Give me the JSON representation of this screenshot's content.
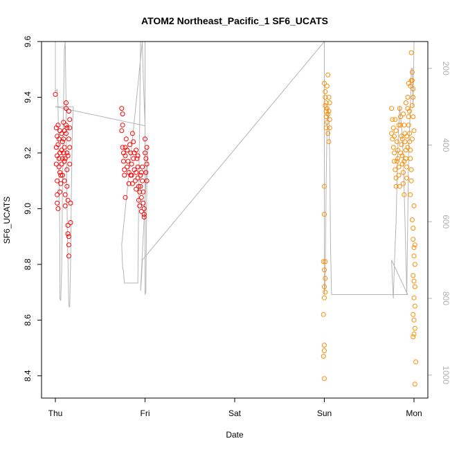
{
  "chart_data": {
    "type": "scatter",
    "title": "ATOM2 Northeast_Pacific_1 SF6_UCATS",
    "xlabel": "Date",
    "ylabel": "SF6_UCATS",
    "x_ticks": [
      "Thu",
      "Fri",
      "Sat",
      "Sun",
      "Mon"
    ],
    "x_range": [
      0,
      4
    ],
    "ylim": [
      8.32,
      9.6
    ],
    "y_ticks": [
      8.4,
      8.6,
      8.8,
      9.0,
      9.2,
      9.4,
      9.6
    ],
    "y_tick_labels": [
      "8.4",
      "8.6",
      "8.8",
      "9.0",
      "9.2",
      "9.4",
      "9.6"
    ],
    "y2_ticks": [
      200,
      400,
      600,
      800,
      1000
    ],
    "y2_tick_labels": [
      "200",
      "400",
      "600",
      "800",
      "1000"
    ],
    "y2_range": [
      130,
      1060
    ],
    "grid": false,
    "colors": {
      "early": "#ff0000",
      "late": "#ff8c00",
      "pressure": "#b4b4b4"
    },
    "series": [
      {
        "color": "#ff0000",
        "points": [
          [
            0.0,
            9.41
          ],
          [
            0.01,
            9.29
          ],
          [
            0.02,
            9.26
          ],
          [
            0.01,
            9.22
          ],
          [
            0.02,
            9.19
          ],
          [
            0.01,
            9.16
          ],
          [
            0.02,
            9.1
          ],
          [
            0.02,
            9.05
          ],
          [
            0.03,
            9.0
          ],
          [
            0.02,
            9.02
          ],
          [
            0.03,
            9.3
          ],
          [
            0.04,
            9.25
          ],
          [
            0.05,
            9.2
          ],
          [
            0.04,
            9.15
          ],
          [
            0.05,
            9.13
          ],
          [
            0.06,
            9.09
          ],
          [
            0.05,
            9.06
          ],
          [
            0.07,
            9.27
          ],
          [
            0.07,
            9.21
          ],
          [
            0.08,
            9.18
          ],
          [
            0.08,
            9.12
          ],
          [
            0.09,
            9.31
          ],
          [
            0.09,
            9.25
          ],
          [
            0.1,
            9.22
          ],
          [
            0.1,
            9.17
          ],
          [
            0.1,
            9.1
          ],
          [
            0.11,
            9.05
          ],
          [
            0.11,
            9.01
          ],
          [
            0.12,
            9.38
          ],
          [
            0.12,
            9.3
          ],
          [
            0.12,
            9.27
          ],
          [
            0.13,
            9.2
          ],
          [
            0.13,
            9.14
          ],
          [
            0.13,
            9.08
          ],
          [
            0.14,
            9.03
          ],
          [
            0.14,
            8.94
          ],
          [
            0.14,
            8.91
          ],
          [
            0.15,
            8.87
          ],
          [
            0.15,
            8.83
          ],
          [
            0.15,
            9.35
          ],
          [
            0.16,
            9.29
          ],
          [
            0.16,
            9.22
          ],
          [
            0.16,
            9.16
          ],
          [
            0.17,
            9.02
          ],
          [
            0.17,
            8.95
          ],
          [
            0.07,
            9.16
          ],
          [
            0.06,
            9.12
          ],
          [
            0.09,
            9.2
          ],
          [
            0.11,
            9.18
          ],
          [
            0.13,
            9.29
          ],
          [
            0.15,
            9.25
          ],
          [
            0.16,
            9.32
          ],
          [
            0.12,
            9.36
          ],
          [
            0.14,
            9.19
          ],
          [
            0.1,
            9.28
          ],
          [
            0.08,
            9.24
          ],
          [
            0.04,
            9.18
          ],
          [
            0.03,
            9.23
          ],
          [
            0.05,
            9.28
          ],
          [
            0.15,
            8.9
          ],
          [
            0.74,
            9.36
          ],
          [
            0.75,
            9.34
          ],
          [
            0.75,
            9.3
          ],
          [
            0.74,
            9.28
          ],
          [
            0.75,
            9.22
          ],
          [
            0.76,
            9.2
          ],
          [
            0.76,
            9.17
          ],
          [
            0.77,
            9.14
          ],
          [
            0.77,
            9.12
          ],
          [
            0.78,
            9.04
          ],
          [
            0.78,
            9.19
          ],
          [
            0.79,
            9.25
          ],
          [
            0.8,
            9.21
          ],
          [
            0.81,
            9.17
          ],
          [
            0.82,
            9.13
          ],
          [
            0.82,
            9.09
          ],
          [
            0.83,
            9.23
          ],
          [
            0.84,
            9.2
          ],
          [
            0.85,
            9.16
          ],
          [
            0.85,
            9.12
          ],
          [
            0.86,
            9.27
          ],
          [
            0.87,
            9.24
          ],
          [
            0.87,
            9.18
          ],
          [
            0.88,
            9.14
          ],
          [
            0.89,
            9.1
          ],
          [
            0.9,
            9.07
          ],
          [
            0.9,
            9.21
          ],
          [
            0.91,
            9.18
          ],
          [
            0.92,
            9.15
          ],
          [
            0.92,
            9.11
          ],
          [
            0.93,
            9.08
          ],
          [
            0.93,
            9.03
          ],
          [
            0.94,
            9.01
          ],
          [
            0.95,
            9.12
          ],
          [
            0.95,
            9.08
          ],
          [
            0.96,
            9.04
          ],
          [
            0.96,
            8.99
          ],
          [
            0.97,
            9.15
          ],
          [
            0.97,
            9.1
          ],
          [
            0.98,
            9.06
          ],
          [
            0.98,
            9.02
          ],
          [
            0.99,
            8.98
          ],
          [
            0.99,
            8.97
          ],
          [
            1.0,
            9.25
          ],
          [
            1.0,
            9.2
          ],
          [
            1.01,
            9.18
          ],
          [
            1.01,
            9.13
          ],
          [
            1.02,
            9.22
          ],
          [
            1.02,
            9.16
          ],
          [
            1.02,
            9.1
          ],
          [
            0.8,
            9.15
          ],
          [
            0.84,
            9.12
          ],
          [
            0.88,
            9.2
          ],
          [
            0.92,
            9.19
          ],
          [
            0.96,
            9.13
          ],
          [
            0.78,
            9.22
          ],
          [
            0.86,
            9.09
          ],
          [
            0.94,
            9.06
          ],
          [
            0.9,
            9.13
          ],
          [
            0.99,
            9.0
          ]
        ]
      },
      {
        "color": "#ff8c00",
        "points": [
          [
            3.0,
            9.45
          ],
          [
            3.01,
            9.42
          ],
          [
            3.01,
            9.4
          ],
          [
            3.02,
            9.38
          ],
          [
            3.01,
            9.37
          ],
          [
            3.02,
            9.35
          ],
          [
            3.02,
            9.33
          ],
          [
            3.03,
            9.31
          ],
          [
            3.03,
            9.36
          ],
          [
            3.04,
            9.34
          ],
          [
            3.04,
            9.48
          ],
          [
            3.03,
            9.44
          ],
          [
            3.02,
            9.29
          ],
          [
            3.04,
            9.27
          ],
          [
            3.05,
            9.24
          ],
          [
            3.05,
            9.35
          ],
          [
            3.06,
            9.38
          ],
          [
            3.06,
            9.32
          ],
          [
            3.0,
            9.08
          ],
          [
            3.0,
            8.98
          ],
          [
            2.99,
            8.81
          ],
          [
            3.0,
            8.78
          ],
          [
            3.01,
            8.75
          ],
          [
            3.0,
            8.72
          ],
          [
            3.0,
            8.68
          ],
          [
            3.01,
            8.7
          ],
          [
            2.99,
            8.62
          ],
          [
            3.0,
            8.51
          ],
          [
            3.0,
            8.49
          ],
          [
            2.99,
            8.47
          ],
          [
            3.0,
            8.39
          ],
          [
            3.01,
            8.81
          ],
          [
            3.05,
            9.4
          ],
          [
            3.06,
            9.29
          ],
          [
            3.75,
            9.36
          ],
          [
            3.76,
            9.32
          ],
          [
            3.77,
            9.29
          ],
          [
            3.75,
            9.27
          ],
          [
            3.76,
            9.25
          ],
          [
            3.77,
            9.22
          ],
          [
            3.78,
            9.2
          ],
          [
            3.78,
            9.17
          ],
          [
            3.79,
            9.14
          ],
          [
            3.8,
            9.11
          ],
          [
            3.8,
            9.28
          ],
          [
            3.81,
            9.24
          ],
          [
            3.82,
            9.21
          ],
          [
            3.82,
            9.18
          ],
          [
            3.83,
            9.15
          ],
          [
            3.83,
            9.12
          ],
          [
            3.84,
            9.08
          ],
          [
            3.85,
            9.33
          ],
          [
            3.85,
            9.3
          ],
          [
            3.86,
            9.26
          ],
          [
            3.86,
            9.23
          ],
          [
            3.87,
            9.19
          ],
          [
            3.87,
            9.16
          ],
          [
            3.88,
            9.13
          ],
          [
            3.88,
            9.09
          ],
          [
            3.89,
            9.05
          ],
          [
            3.89,
            9.3
          ],
          [
            3.9,
            9.27
          ],
          [
            3.9,
            9.24
          ],
          [
            3.91,
            9.21
          ],
          [
            3.91,
            9.18
          ],
          [
            3.92,
            9.15
          ],
          [
            3.92,
            9.11
          ],
          [
            3.93,
            9.4
          ],
          [
            3.93,
            9.36
          ],
          [
            3.94,
            9.33
          ],
          [
            3.94,
            9.3
          ],
          [
            3.95,
            9.27
          ],
          [
            3.95,
            9.24
          ],
          [
            3.96,
            9.21
          ],
          [
            3.96,
            9.18
          ],
          [
            3.97,
            9.14
          ],
          [
            3.97,
            9.56
          ],
          [
            3.98,
            9.49
          ],
          [
            3.98,
            9.46
          ],
          [
            3.99,
            9.43
          ],
          [
            3.99,
            9.4
          ],
          [
            3.98,
            9.37
          ],
          [
            3.99,
            9.33
          ],
          [
            4.0,
            9.28
          ],
          [
            3.98,
            8.96
          ],
          [
            3.99,
            8.93
          ],
          [
            3.99,
            8.89
          ],
          [
            4.0,
            8.86
          ],
          [
            4.0,
            8.83
          ],
          [
            4.01,
            8.87
          ],
          [
            4.01,
            8.8
          ],
          [
            3.99,
            8.76
          ],
          [
            4.0,
            8.74
          ],
          [
            4.01,
            8.72
          ],
          [
            4.0,
            8.68
          ],
          [
            4.01,
            8.65
          ],
          [
            3.99,
            8.62
          ],
          [
            4.0,
            8.6
          ],
          [
            4.01,
            8.57
          ],
          [
            4.0,
            8.55
          ],
          [
            3.99,
            8.54
          ],
          [
            4.0,
            9.01
          ],
          [
            4.02,
            8.45
          ],
          [
            4.01,
            8.37
          ],
          [
            3.96,
            9.05
          ],
          [
            3.97,
            9.1
          ],
          [
            3.93,
            9.22
          ],
          [
            3.87,
            9.25
          ],
          [
            3.83,
            9.3
          ],
          [
            3.79,
            9.32
          ],
          [
            3.81,
            9.17
          ],
          [
            3.85,
            9.2
          ],
          [
            3.89,
            9.17
          ],
          [
            3.92,
            9.26
          ],
          [
            3.94,
            9.45
          ],
          [
            3.96,
            9.44
          ],
          [
            3.97,
            9.46
          ],
          [
            3.78,
            9.26
          ],
          [
            3.8,
            9.08
          ],
          [
            3.84,
            9.36
          ],
          [
            3.88,
            9.34
          ],
          [
            3.91,
            9.38
          ],
          [
            3.95,
            9.35
          ],
          [
            3.98,
            9.25
          ]
        ]
      }
    ],
    "pressure_trace": [
      [
        0.0,
        130
      ],
      [
        0.0,
        260
      ],
      [
        0.02,
        255
      ],
      [
        0.03,
        300
      ],
      [
        0.04,
        480
      ],
      [
        0.05,
        640
      ],
      [
        0.05,
        800
      ],
      [
        0.06,
        806
      ],
      [
        0.07,
        720
      ],
      [
        0.08,
        500
      ],
      [
        0.09,
        300
      ],
      [
        0.1,
        150
      ],
      [
        0.11,
        130
      ],
      [
        0.12,
        300
      ],
      [
        0.13,
        560
      ],
      [
        0.14,
        700
      ],
      [
        0.15,
        820
      ],
      [
        0.16,
        822
      ],
      [
        0.17,
        700
      ],
      [
        0.18,
        500
      ],
      [
        0.19,
        350
      ],
      [
        0.2,
        300
      ],
      [
        0.0,
        300
      ],
      [
        1.0,
        350
      ],
      [
        0.98,
        220
      ],
      [
        0.97,
        130
      ],
      [
        0.74,
        660
      ],
      [
        0.75,
        720
      ],
      [
        0.76,
        730
      ],
      [
        0.77,
        760
      ],
      [
        0.78,
        760
      ],
      [
        0.85,
        760
      ],
      [
        0.92,
        760
      ],
      [
        0.93,
        520
      ],
      [
        0.94,
        350
      ],
      [
        0.95,
        130
      ],
      [
        1.0,
        130
      ],
      [
        1.0,
        360
      ],
      [
        1.0,
        620
      ],
      [
        1.0,
        790
      ],
      [
        1.01,
        780
      ],
      [
        1.02,
        500
      ],
      [
        1.03,
        400
      ],
      [
        0.95,
        780
      ],
      [
        0.96,
        750
      ],
      [
        0.97,
        700
      ],
      [
        3.0,
        130
      ],
      [
        3.0,
        300
      ],
      [
        3.0,
        780
      ],
      [
        3.0,
        790
      ],
      [
        3.01,
        760
      ],
      [
        3.02,
        500
      ],
      [
        3.03,
        350
      ],
      [
        3.04,
        300
      ],
      [
        3.05,
        330
      ],
      [
        3.06,
        440
      ],
      [
        3.07,
        680
      ],
      [
        3.08,
        790
      ],
      [
        3.93,
        790
      ],
      [
        3.75,
        700
      ],
      [
        3.76,
        760
      ],
      [
        3.77,
        800
      ],
      [
        3.78,
        720
      ],
      [
        3.8,
        600
      ],
      [
        3.82,
        400
      ],
      [
        3.84,
        300
      ],
      [
        3.86,
        350
      ],
      [
        3.88,
        430
      ],
      [
        3.9,
        600
      ],
      [
        3.92,
        790
      ],
      [
        3.94,
        420
      ],
      [
        3.96,
        300
      ],
      [
        3.97,
        200
      ],
      [
        3.98,
        200
      ],
      [
        3.99,
        300
      ],
      [
        4.0,
        130
      ]
    ]
  }
}
